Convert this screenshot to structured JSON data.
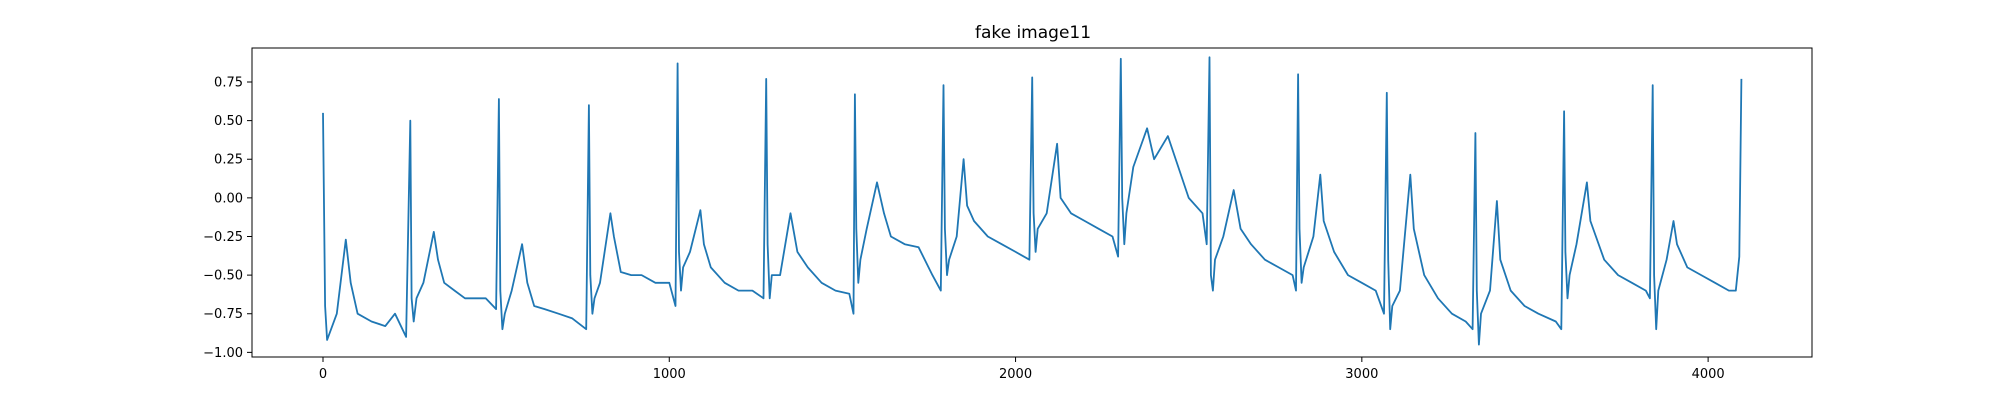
{
  "chart_data": {
    "type": "line",
    "title": "fake image11",
    "xlabel": "",
    "ylabel": "",
    "xlim": [
      -205,
      4300
    ],
    "ylim": [
      -1.03,
      0.97
    ],
    "x_ticks": [
      0,
      1000,
      2000,
      3000,
      4000
    ],
    "x_tick_labels": [
      "0",
      "1000",
      "2000",
      "3000",
      "4000"
    ],
    "y_ticks": [
      -1.0,
      -0.75,
      -0.5,
      -0.25,
      0.0,
      0.25,
      0.5,
      0.75
    ],
    "y_tick_labels": [
      "−1.00",
      "−0.75",
      "−0.50",
      "−0.25",
      "0.00",
      "0.25",
      "0.50",
      "0.75"
    ],
    "grid": false,
    "legend": "none",
    "series": [
      {
        "color": "#1f77b4",
        "x": [
          0,
          6,
          12,
          40,
          66,
          80,
          100,
          140,
          180,
          208,
          240,
          252,
          256,
          262,
          270,
          290,
          320,
          332,
          350,
          380,
          410,
          440,
          470,
          500,
          508,
          512,
          518,
          525,
          545,
          575,
          590,
          610,
          640,
          680,
          720,
          760,
          768,
          772,
          778,
          784,
          800,
          830,
          840,
          860,
          890,
          920,
          960,
          1000,
          1018,
          1024,
          1028,
          1034,
          1040,
          1060,
          1090,
          1100,
          1120,
          1160,
          1200,
          1240,
          1272,
          1280,
          1284,
          1290,
          1296,
          1320,
          1350,
          1370,
          1400,
          1440,
          1480,
          1520,
          1532,
          1536,
          1540,
          1546,
          1552,
          1570,
          1600,
          1620,
          1640,
          1680,
          1720,
          1760,
          1784,
          1792,
          1796,
          1802,
          1808,
          1830,
          1850,
          1860,
          1880,
          1920,
          1960,
          2000,
          2040,
          2048,
          2052,
          2058,
          2064,
          2090,
          2120,
          2130,
          2160,
          2200,
          2240,
          2280,
          2296,
          2304,
          2308,
          2314,
          2320,
          2340,
          2380,
          2400,
          2440,
          2470,
          2500,
          2540,
          2552,
          2560,
          2564,
          2570,
          2576,
          2600,
          2630,
          2650,
          2680,
          2720,
          2760,
          2800,
          2810,
          2816,
          2820,
          2826,
          2832,
          2860,
          2880,
          2890,
          2920,
          2960,
          3000,
          3040,
          3064,
          3072,
          3076,
          3082,
          3088,
          3110,
          3140,
          3150,
          3180,
          3220,
          3260,
          3300,
          3320,
          3328,
          3332,
          3338,
          3344,
          3370,
          3390,
          3400,
          3430,
          3470,
          3510,
          3560,
          3576,
          3584,
          3588,
          3594,
          3600,
          3620,
          3650,
          3660,
          3700,
          3740,
          3780,
          3820,
          3832,
          3840,
          3844,
          3850,
          3856,
          3880,
          3900,
          3910,
          3940,
          3980,
          4020,
          4060,
          4080,
          4090,
          4096
        ],
        "y": [
          0.55,
          -0.7,
          -0.92,
          -0.75,
          -0.27,
          -0.55,
          -0.75,
          -0.8,
          -0.83,
          -0.75,
          -0.9,
          0.5,
          -0.65,
          -0.8,
          -0.65,
          -0.55,
          -0.22,
          -0.4,
          -0.55,
          -0.6,
          -0.65,
          -0.65,
          -0.65,
          -0.72,
          0.64,
          -0.6,
          -0.85,
          -0.75,
          -0.6,
          -0.3,
          -0.55,
          -0.7,
          -0.72,
          -0.75,
          -0.78,
          -0.85,
          0.6,
          -0.5,
          -0.75,
          -0.65,
          -0.55,
          -0.1,
          -0.25,
          -0.48,
          -0.5,
          -0.5,
          -0.55,
          -0.55,
          -0.7,
          0.87,
          -0.35,
          -0.6,
          -0.45,
          -0.35,
          -0.08,
          -0.3,
          -0.45,
          -0.55,
          -0.6,
          -0.6,
          -0.65,
          0.77,
          -0.3,
          -0.65,
          -0.5,
          -0.5,
          -0.1,
          -0.35,
          -0.45,
          -0.55,
          -0.6,
          -0.62,
          -0.75,
          0.67,
          -0.2,
          -0.55,
          -0.4,
          -0.2,
          0.1,
          -0.1,
          -0.25,
          -0.3,
          -0.32,
          -0.5,
          -0.6,
          0.73,
          -0.2,
          -0.5,
          -0.4,
          -0.25,
          0.25,
          -0.05,
          -0.15,
          -0.25,
          -0.3,
          -0.35,
          -0.4,
          0.78,
          -0.1,
          -0.35,
          -0.2,
          -0.1,
          0.35,
          0.0,
          -0.1,
          -0.15,
          -0.2,
          -0.25,
          -0.38,
          0.9,
          0.0,
          -0.3,
          -0.1,
          0.2,
          0.45,
          0.25,
          0.4,
          0.2,
          0.0,
          -0.1,
          -0.3,
          0.91,
          -0.5,
          -0.6,
          -0.4,
          -0.25,
          0.05,
          -0.2,
          -0.3,
          -0.4,
          -0.45,
          -0.5,
          -0.6,
          0.8,
          -0.2,
          -0.55,
          -0.45,
          -0.25,
          0.15,
          -0.15,
          -0.35,
          -0.5,
          -0.55,
          -0.6,
          -0.75,
          0.68,
          -0.4,
          -0.85,
          -0.7,
          -0.6,
          0.15,
          -0.2,
          -0.5,
          -0.65,
          -0.75,
          -0.8,
          -0.85,
          0.42,
          -0.6,
          -0.95,
          -0.75,
          -0.6,
          -0.02,
          -0.4,
          -0.6,
          -0.7,
          -0.75,
          -0.8,
          -0.85,
          0.56,
          -0.35,
          -0.65,
          -0.5,
          -0.3,
          0.1,
          -0.15,
          -0.4,
          -0.5,
          -0.55,
          -0.6,
          -0.65,
          0.73,
          -0.5,
          -0.85,
          -0.6,
          -0.4,
          -0.15,
          -0.3,
          -0.45,
          -0.5,
          -0.55,
          -0.6,
          -0.6,
          -0.38,
          0.77
        ]
      }
    ]
  }
}
